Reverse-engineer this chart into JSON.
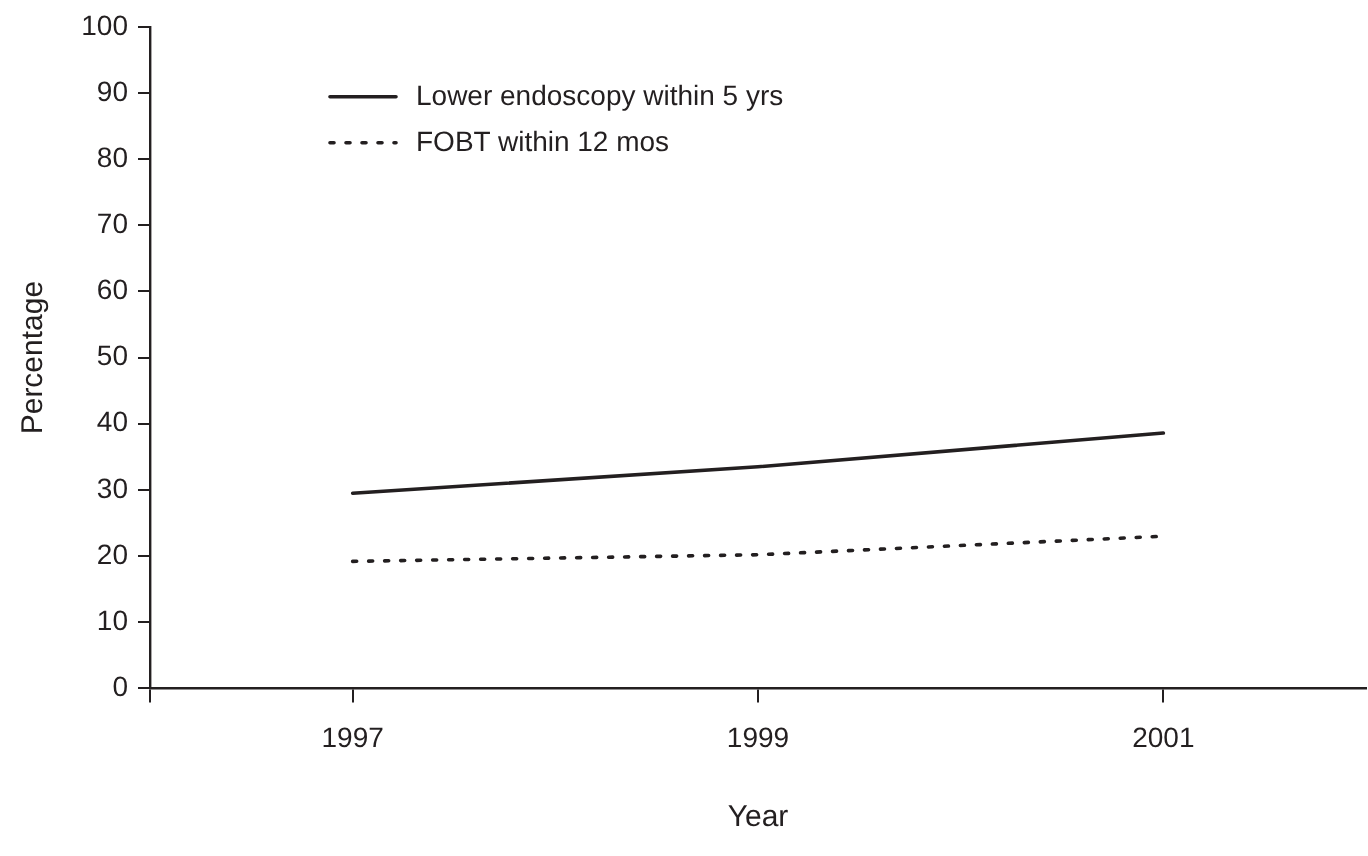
{
  "chart_data": {
    "type": "line",
    "xlabel": "Year",
    "ylabel": "Percentage",
    "x": [
      1997,
      1999,
      2001
    ],
    "series": [
      {
        "name": "Lower endoscopy within 5 yrs",
        "color": "#231f20",
        "line_style": "solid",
        "values": [
          29.5,
          33.5,
          38.6
        ]
      },
      {
        "name": "FOBT within 12 mos",
        "color": "#231f20",
        "line_style": "dotted",
        "values": [
          19.2,
          20.2,
          23.0
        ]
      }
    ],
    "xlim": [
      1996,
      2002
    ],
    "xticks": [
      {
        "value": 1996,
        "label": null
      },
      1997,
      1999,
      2001
    ],
    "ylim": [
      0,
      100
    ],
    "yticks": [
      0,
      10,
      20,
      30,
      40,
      50,
      60,
      70,
      80,
      90,
      100
    ],
    "grid": false,
    "legend": "top left",
    "marker": "none"
  }
}
